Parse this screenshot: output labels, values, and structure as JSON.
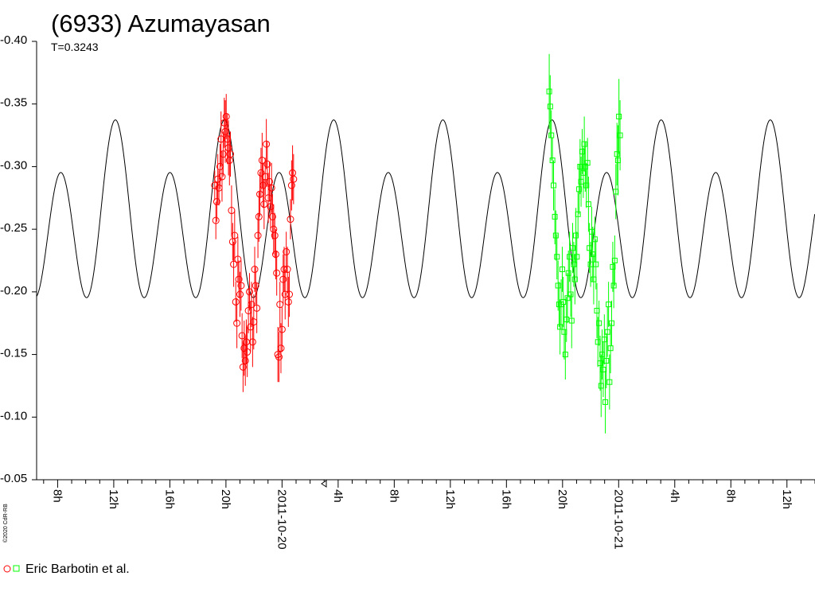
{
  "chart_data": {
    "type": "scatter",
    "title": "(6933) Azumayasan",
    "subtitle": "T=0.3243",
    "credit": "©2020 CdR-RB",
    "y_axis": {
      "reversed": true,
      "range": [
        -0.4,
        -0.05
      ],
      "ticks": [
        "-0.40",
        "-0.35",
        "-0.30",
        "-0.25",
        "-0.20",
        "-0.15",
        "-0.10",
        "-0.05"
      ],
      "tick_values": [
        -0.4,
        -0.35,
        -0.3,
        -0.25,
        -0.2,
        -0.15,
        -0.1,
        -0.05
      ]
    },
    "x_axis": {
      "unit": "hours",
      "range": [
        6.5,
        62
      ],
      "tick_labels": [
        {
          "x": 8,
          "label": "8h"
        },
        {
          "x": 12,
          "label": "12h"
        },
        {
          "x": 16,
          "label": "16h"
        },
        {
          "x": 20,
          "label": "20h"
        },
        {
          "x": 24,
          "label": "2011-10-20"
        },
        {
          "x": 28,
          "label": "4h"
        },
        {
          "x": 32,
          "label": "8h"
        },
        {
          "x": 36,
          "label": "12h"
        },
        {
          "x": 40,
          "label": "16h"
        },
        {
          "x": 44,
          "label": "20h"
        },
        {
          "x": 48,
          "label": "2011-10-21"
        },
        {
          "x": 52,
          "label": "4h"
        },
        {
          "x": 56,
          "label": "8h"
        },
        {
          "x": 60,
          "label": "12h"
        }
      ]
    },
    "model_curve": {
      "period_hours": 7.783,
      "mean": -0.2563,
      "a1": -0.021,
      "a2": -0.06,
      "phase_ref_hour": 19.9,
      "color": "#000000"
    },
    "series": [
      {
        "name": "Eric Barbotin et al.",
        "marker": "circle",
        "color": "#ff0000",
        "points": [
          [
            19.2,
            -0.285,
            0.012
          ],
          [
            19.28,
            -0.257,
            0.015
          ],
          [
            19.35,
            -0.272,
            0.016
          ],
          [
            19.42,
            -0.29,
            0.02
          ],
          [
            19.5,
            -0.283,
            0.014
          ],
          [
            19.58,
            -0.3,
            0.018
          ],
          [
            19.65,
            -0.322,
            0.022
          ],
          [
            19.72,
            -0.292,
            0.02
          ],
          [
            19.8,
            -0.31,
            0.018
          ],
          [
            19.88,
            -0.335,
            0.02
          ],
          [
            19.95,
            -0.328,
            0.025
          ],
          [
            20.02,
            -0.34,
            0.018
          ],
          [
            20.1,
            -0.322,
            0.02
          ],
          [
            20.18,
            -0.315,
            0.022
          ],
          [
            20.25,
            -0.305,
            0.02
          ],
          [
            20.32,
            -0.31,
            0.018
          ],
          [
            20.4,
            -0.265,
            0.02
          ],
          [
            20.48,
            -0.24,
            0.015
          ],
          [
            20.55,
            -0.222,
            0.018
          ],
          [
            20.62,
            -0.245,
            0.02
          ],
          [
            20.7,
            -0.192,
            0.016
          ],
          [
            20.78,
            -0.175,
            0.02
          ],
          [
            20.85,
            -0.226,
            0.018
          ],
          [
            20.92,
            -0.21,
            0.015
          ],
          [
            21.0,
            -0.198,
            0.018
          ],
          [
            21.08,
            -0.205,
            0.02
          ],
          [
            21.15,
            -0.165,
            0.018
          ],
          [
            21.22,
            -0.14,
            0.02
          ],
          [
            21.3,
            -0.155,
            0.022
          ],
          [
            21.38,
            -0.145,
            0.02
          ],
          [
            21.45,
            -0.16,
            0.018
          ],
          [
            21.52,
            -0.152,
            0.02
          ],
          [
            21.6,
            -0.185,
            0.018
          ],
          [
            21.68,
            -0.2,
            0.015
          ],
          [
            21.75,
            -0.172,
            0.02
          ],
          [
            21.82,
            -0.19,
            0.018
          ],
          [
            21.9,
            -0.16,
            0.02
          ],
          [
            21.98,
            -0.176,
            0.022
          ],
          [
            22.05,
            -0.218,
            0.018
          ],
          [
            22.12,
            -0.205,
            0.015
          ],
          [
            22.2,
            -0.187,
            0.02
          ],
          [
            22.28,
            -0.245,
            0.018
          ],
          [
            22.35,
            -0.26,
            0.02
          ],
          [
            22.42,
            -0.278,
            0.018
          ],
          [
            22.5,
            -0.295,
            0.02
          ],
          [
            22.58,
            -0.305,
            0.022
          ],
          [
            22.65,
            -0.285,
            0.018
          ],
          [
            22.72,
            -0.27,
            0.02
          ],
          [
            22.8,
            -0.292,
            0.015
          ],
          [
            22.88,
            -0.318,
            0.02
          ],
          [
            22.95,
            -0.302,
            0.018
          ],
          [
            23.02,
            -0.275,
            0.02
          ],
          [
            23.1,
            -0.288,
            0.016
          ],
          [
            23.18,
            -0.268,
            0.018
          ],
          [
            23.25,
            -0.283,
            0.02
          ],
          [
            23.32,
            -0.26,
            0.018
          ],
          [
            23.4,
            -0.25,
            0.02
          ],
          [
            23.48,
            -0.245,
            0.018
          ],
          [
            23.55,
            -0.23,
            0.02
          ],
          [
            23.62,
            -0.215,
            0.018
          ],
          [
            23.7,
            -0.15,
            0.022
          ],
          [
            23.78,
            -0.148,
            0.02
          ],
          [
            23.85,
            -0.19,
            0.018
          ],
          [
            23.92,
            -0.155,
            0.02
          ],
          [
            24.0,
            -0.17,
            0.018
          ],
          [
            24.08,
            -0.21,
            0.02
          ],
          [
            24.15,
            -0.218,
            0.018
          ],
          [
            24.22,
            -0.198,
            0.02
          ],
          [
            24.3,
            -0.232,
            0.016
          ],
          [
            24.38,
            -0.218,
            0.018
          ],
          [
            24.45,
            -0.192,
            0.02
          ],
          [
            24.52,
            -0.198,
            0.018
          ],
          [
            24.6,
            -0.258,
            0.016
          ],
          [
            24.68,
            -0.285,
            0.02
          ],
          [
            24.75,
            -0.295,
            0.022
          ],
          [
            24.82,
            -0.29,
            0.02
          ]
        ]
      },
      {
        "name": "Eric Barbotin et al.",
        "marker": "square",
        "color": "#00ff00",
        "points": [
          [
            43.05,
            -0.36,
            0.03
          ],
          [
            43.12,
            -0.348,
            0.025
          ],
          [
            43.2,
            -0.325,
            0.02
          ],
          [
            43.28,
            -0.305,
            0.018
          ],
          [
            43.36,
            -0.285,
            0.02
          ],
          [
            43.45,
            -0.26,
            0.022
          ],
          [
            43.52,
            -0.245,
            0.02
          ],
          [
            43.6,
            -0.228,
            0.018
          ],
          [
            43.68,
            -0.205,
            0.02
          ],
          [
            43.75,
            -0.19,
            0.018
          ],
          [
            43.82,
            -0.172,
            0.022
          ],
          [
            43.9,
            -0.19,
            0.02
          ],
          [
            43.98,
            -0.218,
            0.018
          ],
          [
            44.05,
            -0.192,
            0.02
          ],
          [
            44.12,
            -0.168,
            0.022
          ],
          [
            44.2,
            -0.15,
            0.02
          ],
          [
            44.28,
            -0.178,
            0.018
          ],
          [
            44.35,
            -0.195,
            0.02
          ],
          [
            44.42,
            -0.215,
            0.018
          ],
          [
            44.5,
            -0.228,
            0.02
          ],
          [
            44.58,
            -0.198,
            0.018
          ],
          [
            44.65,
            -0.177,
            0.022
          ],
          [
            44.72,
            -0.235,
            0.02
          ],
          [
            44.8,
            -0.222,
            0.018
          ],
          [
            44.88,
            -0.21,
            0.02
          ],
          [
            44.95,
            -0.245,
            0.022
          ],
          [
            45.02,
            -0.228,
            0.02
          ],
          [
            45.1,
            -0.262,
            0.018
          ],
          [
            45.18,
            -0.282,
            0.02
          ],
          [
            45.25,
            -0.3,
            0.022
          ],
          [
            45.32,
            -0.288,
            0.02
          ],
          [
            45.4,
            -0.312,
            0.018
          ],
          [
            45.48,
            -0.295,
            0.02
          ],
          [
            45.55,
            -0.318,
            0.022
          ],
          [
            45.62,
            -0.3,
            0.02
          ],
          [
            45.7,
            -0.285,
            0.018
          ],
          [
            45.78,
            -0.303,
            0.02
          ],
          [
            45.85,
            -0.27,
            0.022
          ],
          [
            45.92,
            -0.235,
            0.02
          ],
          [
            46.0,
            -0.222,
            0.018
          ],
          [
            46.08,
            -0.248,
            0.02
          ],
          [
            46.15,
            -0.23,
            0.022
          ],
          [
            46.22,
            -0.21,
            0.02
          ],
          [
            46.3,
            -0.242,
            0.018
          ],
          [
            46.38,
            -0.222,
            0.02
          ],
          [
            46.45,
            -0.185,
            0.022
          ],
          [
            46.52,
            -0.16,
            0.02
          ],
          [
            46.6,
            -0.175,
            0.018
          ],
          [
            46.68,
            -0.143,
            0.022
          ],
          [
            46.75,
            -0.125,
            0.025
          ],
          [
            46.82,
            -0.15,
            0.02
          ],
          [
            46.9,
            -0.138,
            0.022
          ],
          [
            46.98,
            -0.162,
            0.02
          ],
          [
            47.05,
            -0.112,
            0.025
          ],
          [
            47.12,
            -0.145,
            0.022
          ],
          [
            47.2,
            -0.168,
            0.02
          ],
          [
            47.28,
            -0.19,
            0.018
          ],
          [
            47.35,
            -0.128,
            0.022
          ],
          [
            47.42,
            -0.155,
            0.02
          ],
          [
            47.5,
            -0.175,
            0.018
          ],
          [
            47.58,
            -0.22,
            0.02
          ],
          [
            47.65,
            -0.205,
            0.018
          ],
          [
            47.72,
            -0.225,
            0.02
          ],
          [
            47.8,
            -0.28,
            0.022
          ],
          [
            47.88,
            -0.31,
            0.025
          ],
          [
            47.95,
            -0.305,
            0.028
          ],
          [
            48.02,
            -0.34,
            0.03
          ],
          [
            48.1,
            -0.325,
            0.028
          ]
        ]
      }
    ],
    "legend": {
      "position": "bottom-left",
      "label": "Eric Barbotin et al."
    }
  }
}
